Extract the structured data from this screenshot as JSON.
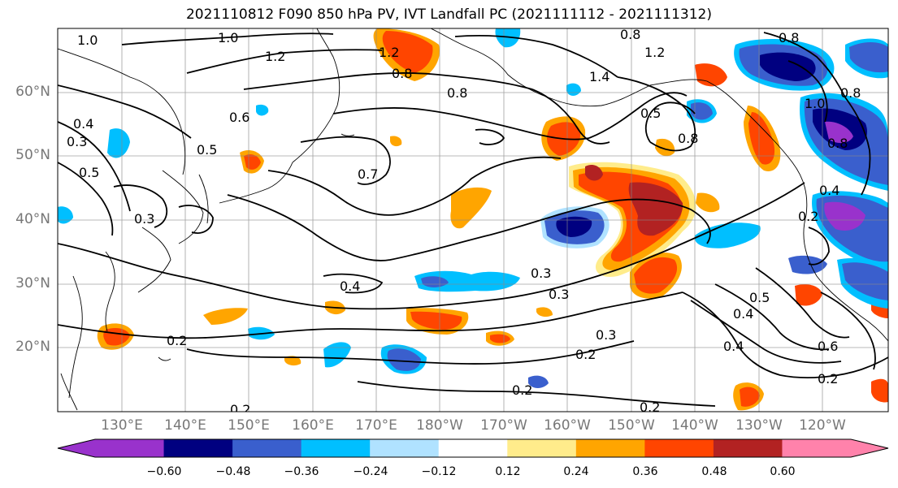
{
  "title": "2021110812 F090 850 hPa PV, IVT Landfall PC (2021111112 - 2021111312)",
  "lat_labels": [
    "60°N",
    "50°N",
    "40°N",
    "30°N",
    "20°N"
  ],
  "lon_labels": [
    "130°E",
    "140°E",
    "150°E",
    "160°E",
    "170°E",
    "180°W",
    "170°W",
    "160°W",
    "150°W",
    "140°W",
    "130°W",
    "120°W"
  ],
  "colorbar": {
    "colors": [
      "#9932cc",
      "#000080",
      "#3a5fcd",
      "#00bfff",
      "#b0e2ff",
      "#ffffff",
      "#ffec8b",
      "#ffa500",
      "#ff4500",
      "#b22222",
      "#ff82ab"
    ],
    "tick_labels": [
      "−0.60",
      "−0.48",
      "−0.36",
      "−0.24",
      "−0.12",
      "0.12",
      "0.24",
      "0.36",
      "0.48",
      "0.60"
    ]
  },
  "contour_labels": [
    "1.0",
    "1.0",
    "1.2",
    "1.2",
    "0.8",
    "0.8",
    "0.8",
    "1.2",
    "0.8",
    "1.4",
    "0.5",
    "0.8",
    "0.6",
    "0.5",
    "0.4",
    "0.3",
    "0.5",
    "0.3",
    "0.7",
    "0.4",
    "0.3",
    "0.3",
    "0.4",
    "0.2",
    "0.3",
    "0.2",
    "0.2",
    "0.2",
    "0.2",
    "0.5",
    "0.4",
    "0.6",
    "0.2",
    "0.8",
    "0.4",
    "0.2",
    "1.0",
    "0.8"
  ]
}
